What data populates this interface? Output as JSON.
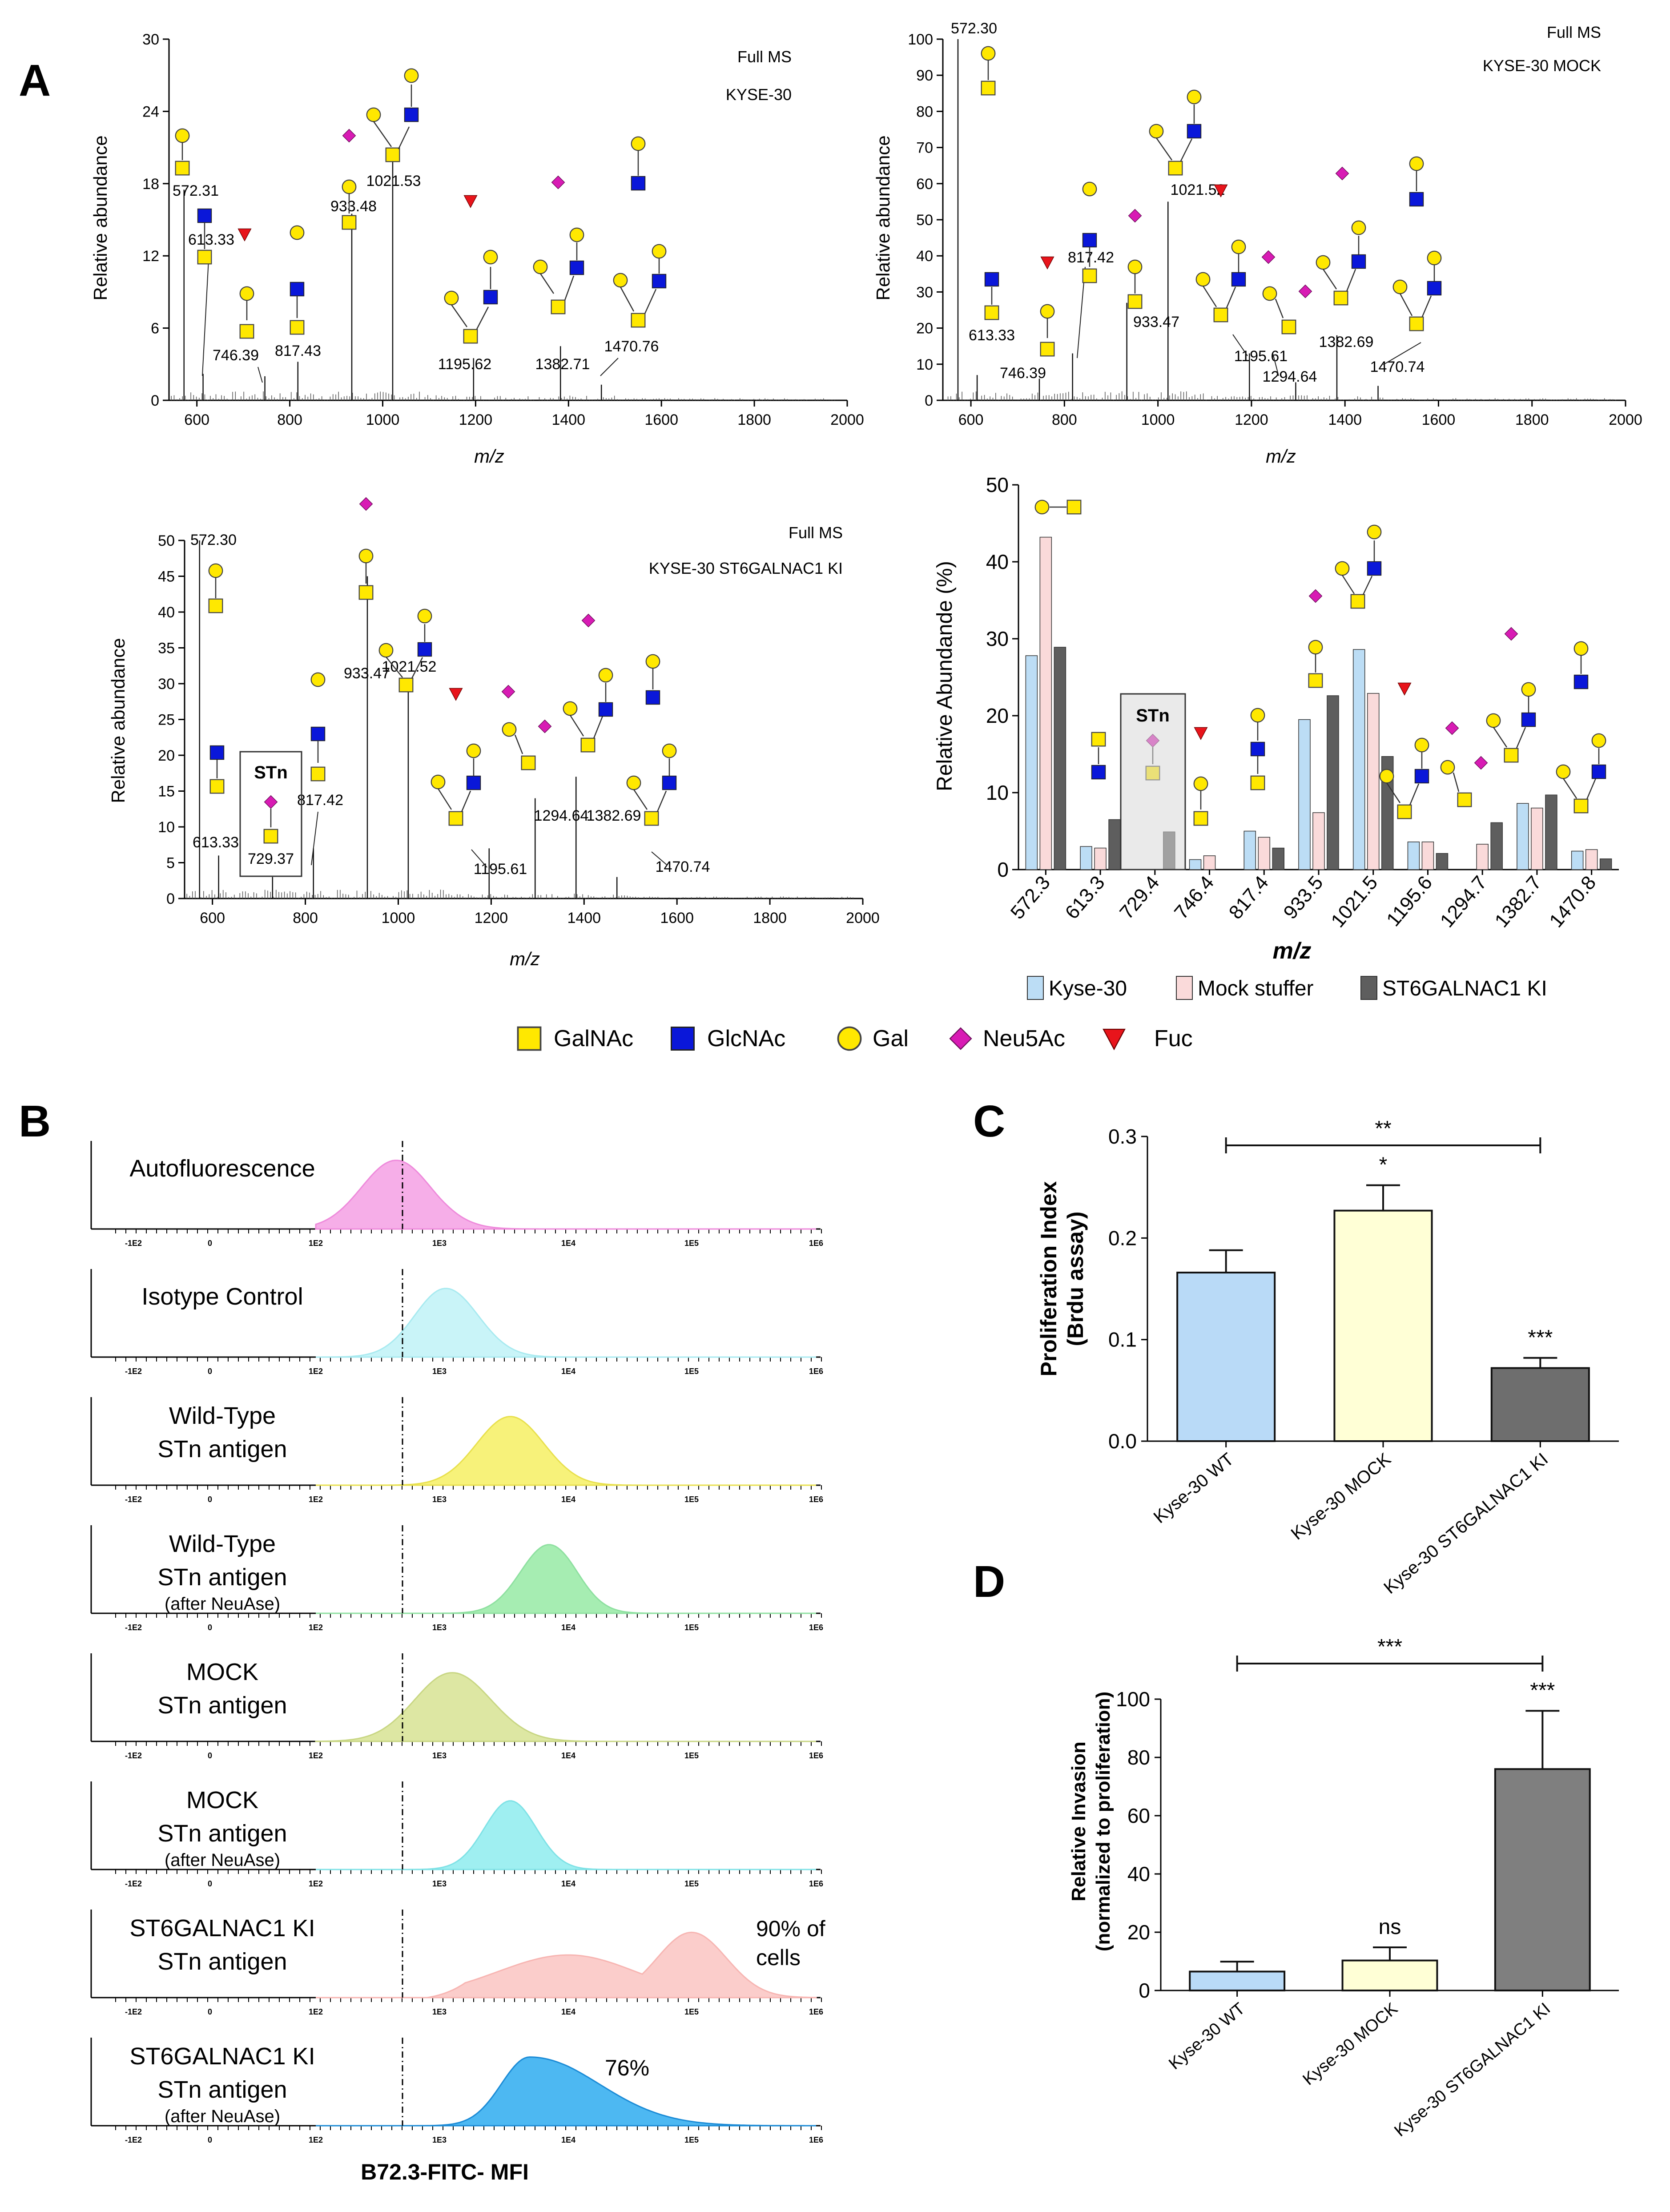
{
  "panel_labels": {
    "a": "A",
    "b": "B",
    "c": "C",
    "d": "D"
  },
  "colors": {
    "galnac": "#FFE800",
    "glcnac": "#0A17D9",
    "gal": "#FFE800",
    "neu5ac": "#D81BB4",
    "fuc": "#E8141B",
    "kyse30": "#BCDDF5",
    "mock": "#FADADA",
    "ki": "#5E5E5E",
    "c_wt": "#B9DAF7",
    "c_mock": "#FFFFD6",
    "c_ki": "#6E6E6E",
    "d_wt": "#B9DAF7",
    "d_mock": "#FFFFD6",
    "d_ki": "#7F7F7F"
  },
  "legend": {
    "items": [
      {
        "label": "GalNAc",
        "icon": "yellow-square-icon"
      },
      {
        "label": "GlcNAc",
        "icon": "blue-square-icon"
      },
      {
        "label": "Gal",
        "icon": "yellow-circle-icon"
      },
      {
        "label": "Neu5Ac",
        "icon": "magenta-diamond-icon"
      },
      {
        "label": "Fuc",
        "icon": "red-triangle-icon"
      }
    ]
  },
  "chart_data": [
    {
      "type": "line",
      "id": "ms1",
      "title": "Full MS",
      "subtitle": "KYSE-30",
      "xlabel": "m/z",
      "ylabel": "Relative abundance",
      "xlim": [
        540,
        2000
      ],
      "ylim": [
        0,
        30
      ],
      "xticks": [
        600,
        800,
        1000,
        1200,
        1400,
        1600,
        1800,
        2000
      ],
      "yticks": [
        0,
        6,
        12,
        18,
        24,
        30
      ],
      "peaks": [
        {
          "mz": 572.31,
          "y": 17.5,
          "label": "572.31"
        },
        {
          "mz": 613.33,
          "y": 2.2,
          "label": "613.33"
        },
        {
          "mz": 746.39,
          "y": 2.0,
          "label": "746.39"
        },
        {
          "mz": 817.43,
          "y": 3.2,
          "label": "817.43"
        },
        {
          "mz": 933.48,
          "y": 15.5,
          "label": "933.48"
        },
        {
          "mz": 1021.53,
          "y": 21.0,
          "label": "1021.53"
        },
        {
          "mz": 1195.62,
          "y": 3.5,
          "label": "1195.62"
        },
        {
          "mz": 1382.71,
          "y": 4.5,
          "label": "1382.71"
        },
        {
          "mz": 1470.76,
          "y": 1.3,
          "label": "1470.76"
        }
      ]
    },
    {
      "type": "line",
      "id": "ms2",
      "title": "Full MS",
      "subtitle": "KYSE-30 MOCK",
      "xlabel": "m/z",
      "ylabel": "Relative abundance",
      "xlim": [
        540,
        2000
      ],
      "ylim": [
        0,
        100
      ],
      "xticks": [
        600,
        800,
        1000,
        1200,
        1400,
        1600,
        1800,
        2000
      ],
      "yticks": [
        0,
        10,
        20,
        30,
        40,
        50,
        60,
        70,
        80,
        90,
        100
      ],
      "peaks": [
        {
          "mz": 572.3,
          "y": 100,
          "label": "572.30"
        },
        {
          "mz": 613.33,
          "y": 7.0,
          "label": "613.33"
        },
        {
          "mz": 746.39,
          "y": 6.0,
          "label": "746.39"
        },
        {
          "mz": 817.42,
          "y": 13.0,
          "label": "817.42"
        },
        {
          "mz": 933.47,
          "y": 27.0,
          "label": "933.47"
        },
        {
          "mz": 1021.52,
          "y": 55.0,
          "label": "1021.52"
        },
        {
          "mz": 1195.61,
          "y": 13.0,
          "label": "1195.61"
        },
        {
          "mz": 1294.64,
          "y": 5.0,
          "label": "1294.64"
        },
        {
          "mz": 1382.69,
          "y": 18.0,
          "label": "1382.69"
        },
        {
          "mz": 1470.74,
          "y": 4.0,
          "label": "1470.74"
        }
      ]
    },
    {
      "type": "line",
      "id": "ms3",
      "title": "Full MS",
      "subtitle": "KYSE-30 ST6GALNAC1 KI",
      "xlabel": "m/z",
      "ylabel": "Relative abundance",
      "xlim": [
        540,
        2000
      ],
      "ylim": [
        0,
        50
      ],
      "xticks": [
        600,
        800,
        1000,
        1200,
        1400,
        1600,
        1800,
        2000
      ],
      "yticks": [
        0,
        5,
        10,
        15,
        20,
        25,
        30,
        35,
        40,
        45,
        50
      ],
      "peaks": [
        {
          "mz": 572.3,
          "y": 50,
          "label": "572.30"
        },
        {
          "mz": 613.33,
          "y": 6.0,
          "label": "613.33"
        },
        {
          "mz": 729.37,
          "y": 3.0,
          "label": "729.37"
        },
        {
          "mz": 817.42,
          "y": 7.0,
          "label": "817.42"
        },
        {
          "mz": 933.47,
          "y": 45.0,
          "label": "933.47"
        },
        {
          "mz": 1021.52,
          "y": 30.0,
          "label": "1021.52"
        },
        {
          "mz": 1195.61,
          "y": 7.0,
          "label": "1195.61"
        },
        {
          "mz": 1294.64,
          "y": 14.0,
          "label": "1294.64"
        },
        {
          "mz": 1382.69,
          "y": 17.0,
          "label": "1382.69"
        },
        {
          "mz": 1470.74,
          "y": 3.0,
          "label": "1470.74"
        }
      ],
      "box_label": "STn"
    },
    {
      "type": "bar",
      "id": "abund",
      "xlabel": "m/z",
      "ylabel": "Relative Abundande (%)",
      "ylim": [
        0,
        50
      ],
      "yticks": [
        0,
        10,
        20,
        30,
        40,
        50
      ],
      "categories": [
        "572.3",
        "613.3",
        "729.4",
        "746.4",
        "817.4",
        "933.5",
        "1021.5",
        "1195.6",
        "1294.7",
        "1382.7",
        "1470.8"
      ],
      "series": [
        {
          "name": "Kyse-30",
          "values": [
            27.8,
            3.0,
            0,
            1.3,
            5.0,
            19.5,
            28.6,
            3.6,
            0,
            8.6,
            2.4
          ]
        },
        {
          "name": "Mock stuffer",
          "values": [
            43.2,
            2.8,
            0,
            1.8,
            4.2,
            7.4,
            22.9,
            3.6,
            3.3,
            8.0,
            2.6
          ]
        },
        {
          "name": "ST6GALNAC1 KI",
          "values": [
            28.9,
            6.5,
            4.9,
            0,
            2.8,
            22.6,
            14.7,
            2.1,
            6.1,
            9.7,
            1.4
          ]
        }
      ],
      "box_label": "STn"
    },
    {
      "type": "area",
      "id": "flow",
      "xlabel": "B72.3-FITC- MFI",
      "xticks": [
        "-1E2",
        "0",
        "1E2",
        "1E3",
        "1E4",
        "1E5",
        "1E6"
      ],
      "rows": [
        {
          "label_lines": [
            "Autofluorescence"
          ],
          "note": "",
          "mode": 2.65,
          "spread": 0.28,
          "color": "#F6AEE8",
          "stroke": "#EE8ADB"
        },
        {
          "label_lines": [
            "Isotype Control"
          ],
          "note": "",
          "mode": 3.05,
          "spread": 0.25,
          "color": "#C9F4F8",
          "stroke": "#A8EAF0"
        },
        {
          "label_lines": [
            "Wild-Type",
            "STn antigen"
          ],
          "note": "",
          "mode": 3.55,
          "spread": 0.26,
          "color": "#F7F27A",
          "stroke": "#E8E04D"
        },
        {
          "label_lines": [
            "Wild-Type",
            "STn antigen"
          ],
          "sub": "(after NeuAse)",
          "note": "",
          "mode": 3.85,
          "spread": 0.22,
          "color": "#A6EDB2",
          "stroke": "#8EE0A0"
        },
        {
          "label_lines": [
            "MOCK",
            "STn antigen"
          ],
          "note": "",
          "mode": 3.1,
          "spread": 0.3,
          "color": "#DDE7A3",
          "stroke": "#C8D683"
        },
        {
          "label_lines": [
            "MOCK",
            "STn antigen"
          ],
          "sub": "(after NeuAse)",
          "note": "",
          "mode": 3.55,
          "spread": 0.2,
          "color": "#9FEFF1",
          "stroke": "#7FE2E6"
        },
        {
          "label_lines": [
            "ST6GALNAC1 KI",
            "STn antigen"
          ],
          "note": "90% of cells",
          "mode": 4.9,
          "spread": 1.1,
          "color": "#FBCDCB",
          "stroke": "#F7B5B2"
        },
        {
          "label_lines": [
            "ST6GALNAC1 KI",
            "STn antigen"
          ],
          "sub": "(after NeuAse)",
          "note": "76%",
          "mode": 3.7,
          "spread": 0.35,
          "color": "#4DB8F2",
          "stroke": "#1B8BD6"
        }
      ]
    },
    {
      "type": "bar",
      "id": "prolif",
      "ylabel_lines": [
        "Proliferation Index",
        "(Brdu assay)"
      ],
      "ylim": [
        0,
        0.3
      ],
      "yticks": [
        0.0,
        0.1,
        0.2,
        0.3
      ],
      "ytick_labels": [
        "0.0",
        "0.1",
        "0.2",
        "0.3"
      ],
      "categories": [
        "Kyse-30 WT",
        "Kyse-30 MOCK",
        "Kyse-30 ST6GALNAC1 KI"
      ],
      "values": [
        0.166,
        0.227,
        0.072
      ],
      "errors": [
        0.022,
        0.025,
        0.01
      ],
      "sig_labels": [
        "",
        "*",
        "***"
      ],
      "bracket_label": "**"
    },
    {
      "type": "bar",
      "id": "invasion",
      "ylabel_lines": [
        "Relative Invasion",
        "(normalized to proliferation)"
      ],
      "ylim": [
        0,
        100
      ],
      "yticks": [
        0,
        20,
        40,
        60,
        80,
        100
      ],
      "ytick_labels": [
        "0",
        "20",
        "40",
        "60",
        "80",
        "100"
      ],
      "categories": [
        "Kyse-30 WT",
        "Kyse-30 MOCK",
        "Kyse-30 ST6GALNAC1 KI"
      ],
      "values": [
        6.5,
        10.3,
        76.0
      ],
      "errors": [
        3.4,
        4.5,
        20.0
      ],
      "sig_labels": [
        "",
        "ns",
        "***"
      ],
      "bracket_label": "***"
    }
  ]
}
